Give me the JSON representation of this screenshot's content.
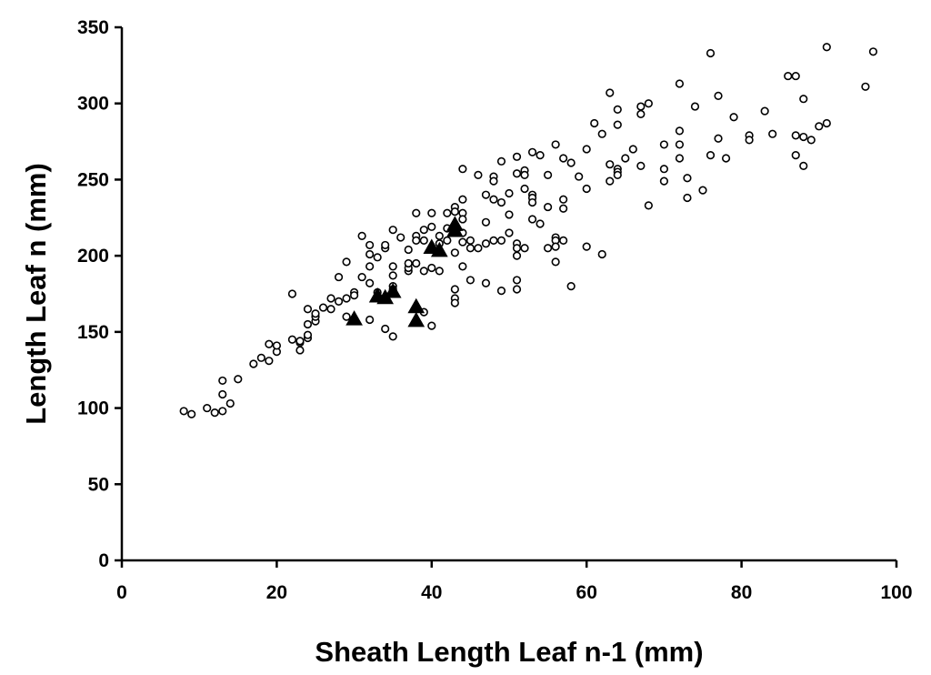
{
  "chart_data": {
    "type": "scatter",
    "title": "",
    "xlabel": "Sheath Length Leaf n-1 (mm)",
    "ylabel": "Length Leaf n (mm)",
    "xlim": [
      0,
      100
    ],
    "ylim": [
      0,
      350
    ],
    "xticks": [
      "0",
      "20",
      "40",
      "60",
      "80",
      "100"
    ],
    "yticks": [
      "0",
      "50",
      "100",
      "150",
      "200",
      "250",
      "300",
      "350"
    ],
    "grid": false,
    "legend": "none",
    "series": [
      {
        "marker": "open-circle",
        "color": "#000000",
        "points": [
          [
            8,
            98
          ],
          [
            9,
            96
          ],
          [
            11,
            100
          ],
          [
            12,
            97
          ],
          [
            13,
            98
          ],
          [
            13,
            109
          ],
          [
            13,
            118
          ],
          [
            14,
            103
          ],
          [
            15,
            119
          ],
          [
            17,
            129
          ],
          [
            18,
            133
          ],
          [
            19,
            131
          ],
          [
            19,
            142
          ],
          [
            20,
            137
          ],
          [
            20,
            141
          ],
          [
            22,
            145
          ],
          [
            22,
            175
          ],
          [
            23,
            138
          ],
          [
            23,
            143
          ],
          [
            23,
            144
          ],
          [
            24,
            146
          ],
          [
            24,
            148
          ],
          [
            24,
            155
          ],
          [
            24,
            165
          ],
          [
            25,
            157
          ],
          [
            25,
            160
          ],
          [
            25,
            162
          ],
          [
            26,
            166
          ],
          [
            27,
            165
          ],
          [
            27,
            172
          ],
          [
            28,
            186
          ],
          [
            28,
            170
          ],
          [
            29,
            160
          ],
          [
            29,
            172
          ],
          [
            29,
            196
          ],
          [
            30,
            176
          ],
          [
            30,
            174
          ],
          [
            31,
            213
          ],
          [
            31,
            186
          ],
          [
            32,
            193
          ],
          [
            32,
            207
          ],
          [
            32,
            201
          ],
          [
            32,
            182
          ],
          [
            32,
            158
          ],
          [
            33,
            199
          ],
          [
            33,
            176
          ],
          [
            34,
            152
          ],
          [
            34,
            205
          ],
          [
            34,
            207
          ],
          [
            35,
            217
          ],
          [
            35,
            193
          ],
          [
            35,
            187
          ],
          [
            35,
            180
          ],
          [
            35,
            178
          ],
          [
            35,
            147
          ],
          [
            36,
            212
          ],
          [
            37,
            190
          ],
          [
            37,
            192
          ],
          [
            37,
            195
          ],
          [
            37,
            204
          ],
          [
            38,
            213
          ],
          [
            38,
            228
          ],
          [
            38,
            210
          ],
          [
            38,
            195
          ],
          [
            39,
            217
          ],
          [
            39,
            210
          ],
          [
            39,
            190
          ],
          [
            39,
            163
          ],
          [
            40,
            228
          ],
          [
            40,
            219
          ],
          [
            40,
            192
          ],
          [
            40,
            154
          ],
          [
            41,
            213
          ],
          [
            41,
            208
          ],
          [
            41,
            190
          ],
          [
            42,
            228
          ],
          [
            42,
            218
          ],
          [
            42,
            210
          ],
          [
            43,
            232
          ],
          [
            43,
            229
          ],
          [
            43,
            202
          ],
          [
            43,
            178
          ],
          [
            43,
            172
          ],
          [
            43,
            169
          ],
          [
            44,
            257
          ],
          [
            44,
            237
          ],
          [
            44,
            228
          ],
          [
            44,
            224
          ],
          [
            44,
            215
          ],
          [
            44,
            209
          ],
          [
            44,
            193
          ],
          [
            45,
            210
          ],
          [
            45,
            205
          ],
          [
            45,
            184
          ],
          [
            46,
            205
          ],
          [
            46,
            253
          ],
          [
            47,
            240
          ],
          [
            47,
            222
          ],
          [
            47,
            208
          ],
          [
            47,
            182
          ],
          [
            48,
            252
          ],
          [
            48,
            249
          ],
          [
            48,
            237
          ],
          [
            48,
            210
          ],
          [
            49,
            262
          ],
          [
            49,
            235
          ],
          [
            49,
            210
          ],
          [
            49,
            177
          ],
          [
            50,
            241
          ],
          [
            50,
            227
          ],
          [
            50,
            215
          ],
          [
            51,
            265
          ],
          [
            51,
            254
          ],
          [
            51,
            208
          ],
          [
            51,
            205
          ],
          [
            51,
            200
          ],
          [
            51,
            184
          ],
          [
            51,
            178
          ],
          [
            52,
            256
          ],
          [
            52,
            253
          ],
          [
            52,
            244
          ],
          [
            52,
            205
          ],
          [
            53,
            268
          ],
          [
            53,
            240
          ],
          [
            53,
            238
          ],
          [
            53,
            235
          ],
          [
            53,
            224
          ],
          [
            54,
            266
          ],
          [
            54,
            221
          ],
          [
            55,
            253
          ],
          [
            55,
            232
          ],
          [
            55,
            205
          ],
          [
            56,
            273
          ],
          [
            56,
            212
          ],
          [
            56,
            210
          ],
          [
            56,
            206
          ],
          [
            56,
            196
          ],
          [
            57,
            264
          ],
          [
            57,
            237
          ],
          [
            57,
            231
          ],
          [
            57,
            210
          ],
          [
            58,
            180
          ],
          [
            58,
            261
          ],
          [
            59,
            252
          ],
          [
            60,
            270
          ],
          [
            60,
            244
          ],
          [
            60,
            206
          ],
          [
            61,
            287
          ],
          [
            62,
            280
          ],
          [
            62,
            201
          ],
          [
            63,
            307
          ],
          [
            63,
            260
          ],
          [
            63,
            249
          ],
          [
            64,
            296
          ],
          [
            64,
            286
          ],
          [
            64,
            257
          ],
          [
            64,
            255
          ],
          [
            64,
            253
          ],
          [
            65,
            264
          ],
          [
            66,
            270
          ],
          [
            67,
            298
          ],
          [
            67,
            293
          ],
          [
            67,
            259
          ],
          [
            68,
            300
          ],
          [
            68,
            233
          ],
          [
            70,
            273
          ],
          [
            70,
            257
          ],
          [
            70,
            249
          ],
          [
            72,
            313
          ],
          [
            72,
            282
          ],
          [
            72,
            273
          ],
          [
            72,
            264
          ],
          [
            73,
            251
          ],
          [
            73,
            238
          ],
          [
            74,
            298
          ],
          [
            75,
            243
          ],
          [
            76,
            333
          ],
          [
            76,
            266
          ],
          [
            77,
            305
          ],
          [
            77,
            277
          ],
          [
            78,
            264
          ],
          [
            79,
            291
          ],
          [
            81,
            279
          ],
          [
            81,
            276
          ],
          [
            83,
            295
          ],
          [
            84,
            280
          ],
          [
            86,
            318
          ],
          [
            87,
            318
          ],
          [
            87,
            279
          ],
          [
            87,
            266
          ],
          [
            88,
            303
          ],
          [
            88,
            278
          ],
          [
            88,
            259
          ],
          [
            89,
            276
          ],
          [
            90,
            285
          ],
          [
            91,
            337
          ],
          [
            91,
            287
          ],
          [
            96,
            311
          ],
          [
            97,
            334
          ]
        ]
      },
      {
        "marker": "filled-triangle",
        "color": "#000000",
        "points": [
          [
            30,
            158
          ],
          [
            33,
            173
          ],
          [
            34,
            172
          ],
          [
            35,
            176
          ],
          [
            38,
            166
          ],
          [
            38,
            157
          ],
          [
            40,
            205
          ],
          [
            41,
            203
          ],
          [
            43,
            216
          ],
          [
            43,
            220
          ]
        ]
      }
    ]
  }
}
